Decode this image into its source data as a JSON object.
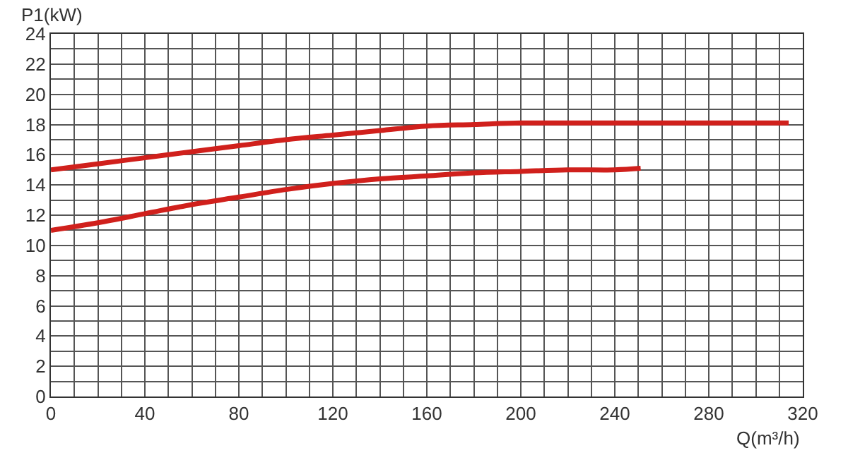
{
  "chart_data": {
    "type": "line",
    "xlabel": "Q(m³/h)",
    "ylabel": "P1(kW)",
    "xlim": [
      0,
      320
    ],
    "xticks": [
      0,
      40,
      80,
      120,
      160,
      200,
      240,
      280,
      320
    ],
    "ylim": [
      0,
      24
    ],
    "yticks": [
      0,
      2,
      4,
      6,
      8,
      10,
      12,
      14,
      16,
      18,
      20,
      22,
      24
    ],
    "grid": true,
    "marker": "none",
    "line_style": "solid",
    "series": [
      {
        "color": "#d0201c",
        "x": [
          0,
          20,
          40,
          60,
          80,
          100,
          120,
          140,
          160,
          180,
          200,
          220,
          240,
          260,
          280,
          300,
          314
        ],
        "values": [
          15,
          15.4,
          15.8,
          16.2,
          16.6,
          17,
          17.3,
          17.6,
          17.9,
          18,
          18.1,
          18.1,
          18.1,
          18.1,
          18.1,
          18.1,
          18.1
        ]
      },
      {
        "color": "#d0201c",
        "x": [
          0,
          20,
          40,
          60,
          80,
          100,
          120,
          140,
          160,
          180,
          200,
          220,
          240,
          251
        ],
        "values": [
          11,
          11.5,
          12.1,
          12.7,
          13.2,
          13.7,
          14.1,
          14.4,
          14.6,
          14.8,
          14.9,
          15,
          15,
          15.1
        ]
      }
    ]
  }
}
